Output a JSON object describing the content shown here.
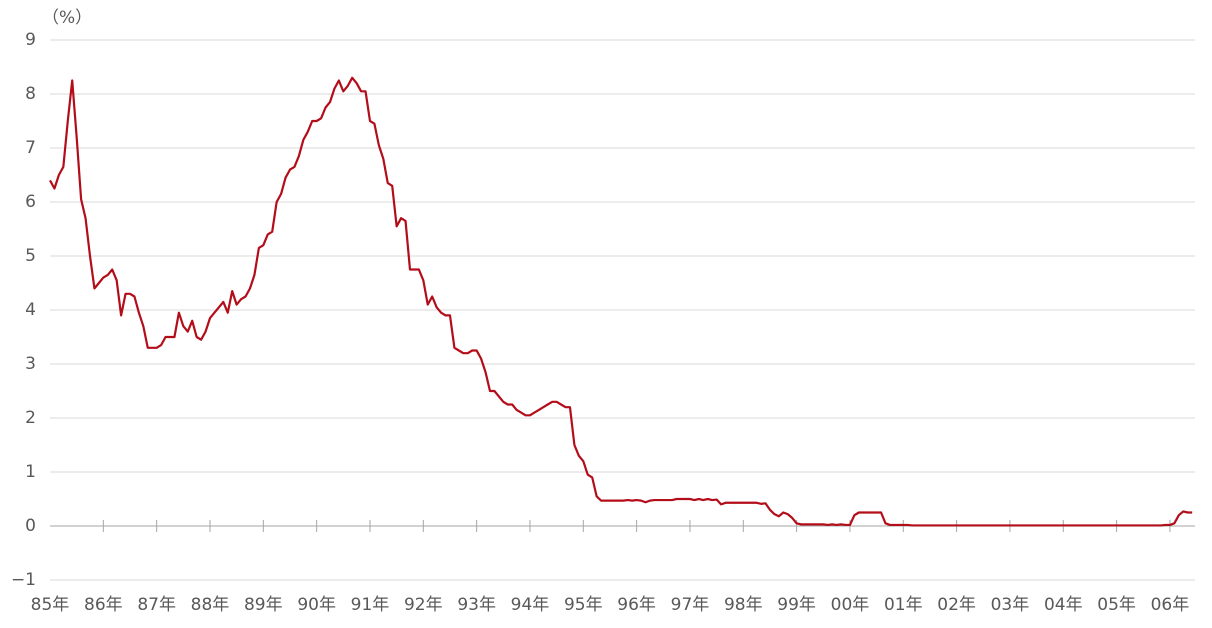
{
  "chart_data": {
    "type": "line",
    "y_label": "（%）",
    "categories": [
      "85年",
      null,
      null,
      null,
      null,
      null,
      null,
      null,
      null,
      null,
      null,
      null,
      "86年",
      null,
      null,
      null,
      null,
      null,
      null,
      null,
      null,
      null,
      null,
      null,
      "87年",
      null,
      null,
      null,
      null,
      null,
      null,
      null,
      null,
      null,
      null,
      null,
      "88年",
      null,
      null,
      null,
      null,
      null,
      null,
      null,
      null,
      null,
      null,
      null,
      "89年",
      null,
      null,
      null,
      null,
      null,
      null,
      null,
      null,
      null,
      null,
      null,
      "90年",
      null,
      null,
      null,
      null,
      null,
      null,
      null,
      null,
      null,
      null,
      null,
      "91年",
      null,
      null,
      null,
      null,
      null,
      null,
      null,
      null,
      null,
      null,
      null,
      "92年",
      null,
      null,
      null,
      null,
      null,
      null,
      null,
      null,
      null,
      null,
      null,
      "93年",
      null,
      null,
      null,
      null,
      null,
      null,
      null,
      null,
      null,
      null,
      null,
      "94年",
      null,
      null,
      null,
      null,
      null,
      null,
      null,
      null,
      null,
      null,
      null,
      "95年",
      null,
      null,
      null,
      null,
      null,
      null,
      null,
      null,
      null,
      null,
      null,
      "96年",
      null,
      null,
      null,
      null,
      null,
      null,
      null,
      null,
      null,
      null,
      null,
      "97年",
      null,
      null,
      null,
      null,
      null,
      null,
      null,
      null,
      null,
      null,
      null,
      "98年",
      null,
      null,
      null,
      null,
      null,
      null,
      null,
      null,
      null,
      null,
      null,
      "99年",
      null,
      null,
      null,
      null,
      null,
      null,
      null,
      null,
      null,
      null,
      null,
      "00年",
      null,
      null,
      null,
      null,
      null,
      null,
      null,
      null,
      null,
      null,
      null,
      "01年",
      null,
      null,
      null,
      null,
      null,
      null,
      null,
      null,
      null,
      null,
      null,
      "02年",
      null,
      null,
      null,
      null,
      null,
      null,
      null,
      null,
      null,
      null,
      null,
      "03年",
      null,
      null,
      null,
      null,
      null,
      null,
      null,
      null,
      null,
      null,
      null,
      "04年",
      null,
      null,
      null,
      null,
      null,
      null,
      null,
      null,
      null,
      null,
      null,
      "05年",
      null,
      null,
      null,
      null,
      null,
      null,
      null,
      null,
      null,
      null,
      null,
      "06年",
      null,
      null,
      null,
      null,
      null
    ],
    "values": [
      6.4,
      6.25,
      6.5,
      6.65,
      7.5,
      8.25,
      7.2,
      6.05,
      5.7,
      5.0,
      4.4,
      4.5,
      4.6,
      4.65,
      4.75,
      4.55,
      3.9,
      4.3,
      4.3,
      4.25,
      3.95,
      3.7,
      3.3,
      3.3,
      3.3,
      3.35,
      3.5,
      3.5,
      3.5,
      3.95,
      3.7,
      3.6,
      3.8,
      3.5,
      3.45,
      3.6,
      3.85,
      3.95,
      4.05,
      4.15,
      3.95,
      4.35,
      4.1,
      4.2,
      4.25,
      4.4,
      4.65,
      5.15,
      5.2,
      5.4,
      5.45,
      6.0,
      6.15,
      6.45,
      6.6,
      6.65,
      6.85,
      7.15,
      7.3,
      7.5,
      7.5,
      7.55,
      7.75,
      7.85,
      8.1,
      8.25,
      8.05,
      8.15,
      8.3,
      8.2,
      8.05,
      8.05,
      7.5,
      7.45,
      7.05,
      6.8,
      6.35,
      6.3,
      5.55,
      5.7,
      5.65,
      4.75,
      4.75,
      4.75,
      4.55,
      4.1,
      4.25,
      4.05,
      3.95,
      3.9,
      3.9,
      3.3,
      3.25,
      3.2,
      3.2,
      3.25,
      3.25,
      3.1,
      2.85,
      2.5,
      2.5,
      2.4,
      2.3,
      2.25,
      2.25,
      2.15,
      2.1,
      2.05,
      2.05,
      2.1,
      2.15,
      2.2,
      2.25,
      2.3,
      2.3,
      2.25,
      2.2,
      2.2,
      1.5,
      1.3,
      1.2,
      0.95,
      0.9,
      0.55,
      0.47,
      0.47,
      0.47,
      0.47,
      0.47,
      0.47,
      0.48,
      0.47,
      0.48,
      0.47,
      0.44,
      0.47,
      0.48,
      0.48,
      0.48,
      0.48,
      0.48,
      0.5,
      0.5,
      0.5,
      0.5,
      0.48,
      0.5,
      0.48,
      0.5,
      0.48,
      0.49,
      0.4,
      0.43,
      0.43,
      0.43,
      0.43,
      0.43,
      0.43,
      0.43,
      0.43,
      0.41,
      0.42,
      0.3,
      0.22,
      0.18,
      0.25,
      0.22,
      0.15,
      0.05,
      0.03,
      0.03,
      0.03,
      0.03,
      0.03,
      0.03,
      0.02,
      0.03,
      0.02,
      0.03,
      0.02,
      0.02,
      0.2,
      0.25,
      0.25,
      0.25,
      0.25,
      0.25,
      0.25,
      0.05,
      0.02,
      0.02,
      0.02,
      0.02,
      0.02,
      0.01,
      0.01,
      0.01,
      0.01,
      0.01,
      0.01,
      0.01,
      0.01,
      0.01,
      0.01,
      0.01,
      0.01,
      0.01,
      0.01,
      0.01,
      0.01,
      0.01,
      0.01,
      0.01,
      0.01,
      0.01,
      0.01,
      0.01,
      0.01,
      0.01,
      0.01,
      0.01,
      0.01,
      0.01,
      0.01,
      0.01,
      0.01,
      0.01,
      0.01,
      0.01,
      0.01,
      0.01,
      0.01,
      0.01,
      0.01,
      0.01,
      0.01,
      0.01,
      0.01,
      0.01,
      0.01,
      0.01,
      0.01,
      0.01,
      0.01,
      0.01,
      0.01,
      0.01,
      0.01,
      0.01,
      0.01,
      0.01,
      0.02,
      0.02,
      0.05,
      0.2,
      0.27,
      0.25,
      0.25
    ],
    "color": "#b30d1a",
    "ylim": [
      -1,
      9
    ],
    "yticks": [
      {
        "value": -1,
        "label": "−1"
      },
      0,
      1,
      2,
      3,
      4,
      5,
      6,
      7,
      8,
      9
    ],
    "grid": true
  }
}
